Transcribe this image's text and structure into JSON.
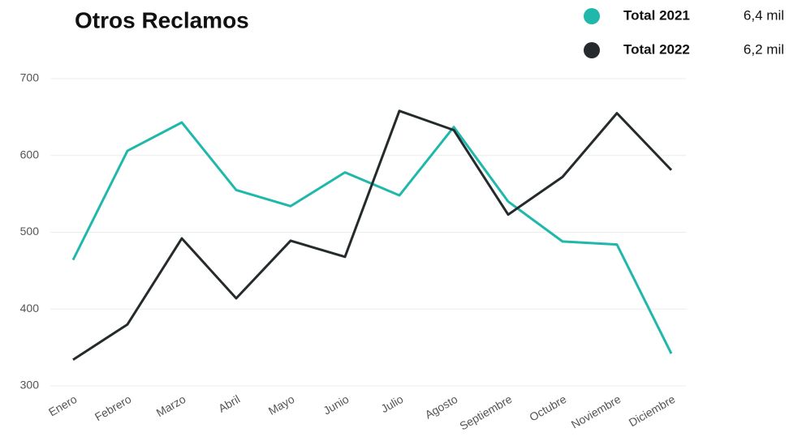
{
  "chart_data": {
    "type": "line",
    "title": "Otros Reclamos",
    "categories": [
      "Enero",
      "Febrero",
      "Marzo",
      "Abril",
      "Mayo",
      "Junio",
      "Julio",
      "Agosto",
      "Septiembre",
      "Octubre",
      "Noviembre",
      "Diciembre"
    ],
    "series": [
      {
        "name": "Total 2021",
        "total": "6,4 mil",
        "color": "#1fb8aa",
        "values": [
          464,
          606,
          643,
          555,
          534,
          578,
          548,
          637,
          540,
          488,
          484,
          342
        ]
      },
      {
        "name": "Total 2022",
        "total": "6,2 mil",
        "color": "#252b2d",
        "values": [
          334,
          380,
          492,
          414,
          489,
          468,
          658,
          633,
          523,
          572,
          655,
          581
        ]
      }
    ],
    "ylim": [
      300,
      700
    ],
    "yticks": [
      300,
      400,
      500,
      600,
      700
    ],
    "grid": true
  }
}
